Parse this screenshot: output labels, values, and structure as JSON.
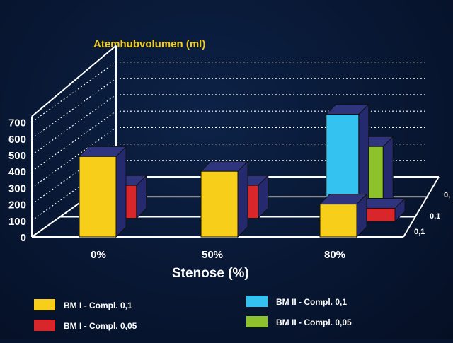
{
  "chart_data": {
    "type": "bar",
    "title": "Atemhubvolumen (ml)",
    "xlabel": "Stenose (%)",
    "categories": [
      "0%",
      "50%",
      "80%"
    ],
    "y_ticks": [
      "0",
      "100",
      "200",
      "300",
      "400",
      "500",
      "600",
      "700"
    ],
    "ylim": [
      0,
      700
    ],
    "depth_labels": [
      "0,1",
      "0,1",
      "0,"
    ],
    "series": [
      {
        "name": "BM I - Compl. 0,1",
        "color": "#f7cf1a",
        "values": [
          490,
          400,
          200
        ]
      },
      {
        "name": "BM I - Compl. 0,05",
        "color": "#d8262b",
        "values": [
          200,
          200,
          80
        ]
      },
      {
        "name": "BM II - Compl. 0,1",
        "color": "#34c3f0",
        "values": [
          null,
          null,
          610
        ]
      },
      {
        "name": "BM II - Compl. 0,05",
        "color": "#8ec22c",
        "values": [
          null,
          null,
          380
        ]
      }
    ],
    "grid": true,
    "legend_position": "bottom"
  },
  "colors": {
    "title": "#f5cc1c",
    "text": "#ffffff",
    "bar_side": "#252a6e",
    "bar_top": "#2e357e",
    "background": "#081733"
  }
}
